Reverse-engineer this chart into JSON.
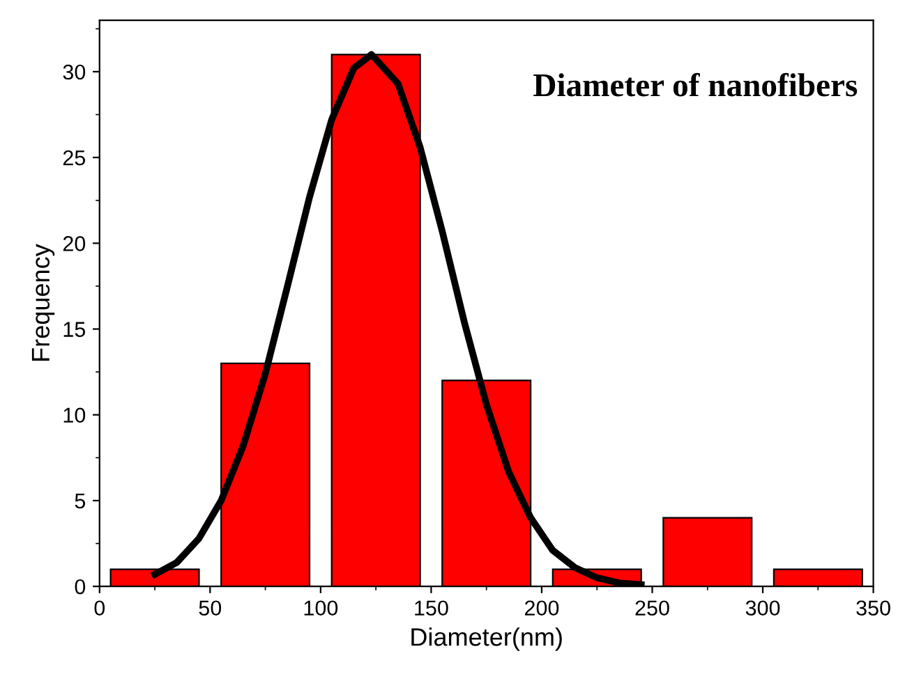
{
  "chart_data": {
    "type": "histogram",
    "title": "Diameter of nanofibers",
    "xlabel": "Diameter(nm)",
    "ylabel": "Frequency",
    "bins": [
      0,
      50,
      100,
      150,
      200,
      250,
      300,
      350
    ],
    "values": [
      1,
      13,
      31,
      12,
      1,
      4,
      1
    ],
    "color": "#ff0000",
    "series": [
      {
        "type": "line",
        "color": "#000000",
        "x": [
          25,
          35,
          45,
          55,
          65,
          75,
          85,
          95,
          105,
          115,
          123,
          135,
          145,
          155,
          165,
          175,
          185,
          195,
          205,
          215,
          225,
          235,
          245
        ],
        "values": [
          0.7,
          1.4,
          2.8,
          5.0,
          8.2,
          12.4,
          17.5,
          22.7,
          27.2,
          30.2,
          31,
          29.3,
          25.6,
          20.7,
          15.4,
          10.6,
          6.7,
          4.0,
          2.1,
          1.1,
          0.5,
          0.2,
          0.1
        ]
      }
    ],
    "xlim": [
      0,
      350
    ],
    "xticks": [
      0,
      50,
      100,
      150,
      200,
      250,
      300,
      350
    ],
    "ylim": [
      0,
      33
    ],
    "yticks": [
      0,
      5,
      10,
      15,
      20,
      25,
      30
    ],
    "grid": false,
    "legend": false
  }
}
